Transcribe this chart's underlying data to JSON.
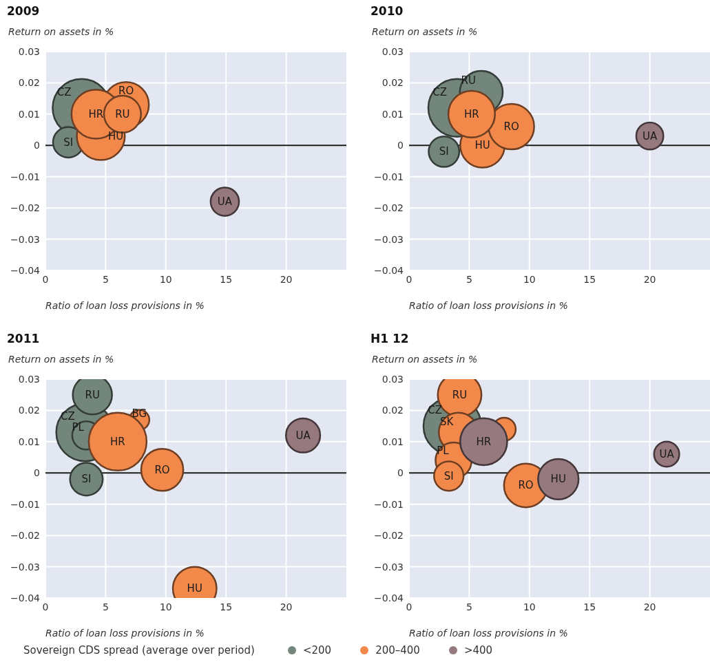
{
  "chart_data": [
    {
      "type": "bubble",
      "title": "2009",
      "xlabel": "Ratio of loan loss provisions in %",
      "ylabel": "Return on assets in %",
      "xlim": [
        0,
        25
      ],
      "xticks": [
        0,
        5,
        10,
        15,
        20
      ],
      "ylim": [
        -0.04,
        0.03
      ],
      "yticks": [
        {
          "value": -0.04,
          "label": "−0.04"
        },
        {
          "value": -0.03,
          "label": "−0.03"
        },
        {
          "value": -0.02,
          "label": "−0.02"
        },
        {
          "value": -0.01,
          "label": "−0.01"
        },
        0,
        0.01,
        0.02,
        0.03
      ],
      "grid": true,
      "ref_lines": [
        {
          "axis": "y",
          "value": 0,
          "color": "#1a1a1a"
        }
      ],
      "series": [
        {
          "color": "#73867c",
          "x": [
            3.0,
            1.9
          ],
          "values": [
            0.012,
            0.001
          ],
          "sizes": [
            1,
            0.28
          ]
        },
        {
          "color": "#f2894b",
          "x": [
            6.7,
            4.6,
            4.2,
            6.4
          ],
          "values": [
            0.013,
            0.003,
            0.01,
            0.01
          ],
          "sizes": [
            0.62,
            0.69,
            0.72,
            0.41
          ]
        },
        {
          "color": "#95797e",
          "x": [
            14.9
          ],
          "values": [
            -0.018
          ],
          "sizes": [
            0.24
          ]
        }
      ],
      "annotations": [
        {
          "text": "CZ",
          "x": 3.0,
          "y": 0.012
        },
        {
          "text": "RO",
          "x": 6.7,
          "y": 0.013
        },
        {
          "text": "HR",
          "x": 4.2,
          "y": 0.01
        },
        {
          "text": "RU",
          "x": 6.4,
          "y": 0.01
        },
        {
          "text": "SI",
          "x": 1.9,
          "y": 0.001
        },
        {
          "text": "HU",
          "x": 4.6,
          "y": 0.003
        },
        {
          "text": "UA",
          "x": 14.9,
          "y": -0.018
        }
      ]
    },
    {
      "type": "bubble",
      "title": "2010",
      "xlabel": "Ratio of loan loss provisions in %",
      "ylabel": "Return on assets in %",
      "xlim": [
        0,
        25
      ],
      "xticks": [
        0,
        5,
        10,
        15,
        20
      ],
      "ylim": [
        -0.04,
        0.03
      ],
      "yticks": [
        {
          "value": -0.04,
          "label": "−0.04"
        },
        {
          "value": -0.03,
          "label": "−0.03"
        },
        {
          "value": -0.02,
          "label": "−0.02"
        },
        {
          "value": -0.01,
          "label": "−0.01"
        },
        0,
        0.01,
        0.02,
        0.03
      ],
      "grid": true,
      "ref_lines": [
        {
          "axis": "y",
          "value": 0,
          "color": "#1a1a1a"
        }
      ],
      "series": [
        {
          "color": "#73867c",
          "x": [
            4.0,
            6.0,
            2.9
          ],
          "values": [
            0.012,
            0.017,
            -0.002
          ],
          "sizes": [
            1,
            0.55,
            0.28
          ]
        },
        {
          "color": "#f2894b",
          "x": [
            6.1,
            8.5,
            5.2
          ],
          "values": [
            0.0,
            0.006,
            0.01
          ],
          "sizes": [
            0.59,
            0.62,
            0.65
          ]
        },
        {
          "color": "#95797e",
          "x": [
            20.0
          ],
          "values": [
            0.003
          ],
          "sizes": [
            0.22
          ]
        }
      ],
      "annotations": [
        {
          "text": "CZ",
          "x": 4.0,
          "y": 0.012
        },
        {
          "text": "RU",
          "x": 6.0,
          "y": 0.017
        },
        {
          "text": "HR",
          "x": 5.2,
          "y": 0.01
        },
        {
          "text": "RO",
          "x": 8.5,
          "y": 0.006
        },
        {
          "text": "SI",
          "x": 2.9,
          "y": -0.002
        },
        {
          "text": "HU",
          "x": 6.1,
          "y": 0.0
        },
        {
          "text": "UA",
          "x": 20.0,
          "y": 0.003
        }
      ]
    },
    {
      "type": "bubble",
      "title": "2011",
      "xlabel": "Ratio of loan loss provisions in %",
      "ylabel": "Return on assets in %",
      "xlim": [
        0,
        25
      ],
      "xticks": [
        0,
        5,
        10,
        15,
        20
      ],
      "ylim": [
        -0.04,
        0.03
      ],
      "yticks": [
        {
          "value": -0.04,
          "label": "−0.04"
        },
        {
          "value": -0.03,
          "label": "−0.03"
        },
        {
          "value": -0.02,
          "label": "−0.02"
        },
        {
          "value": -0.01,
          "label": "−0.01"
        },
        0,
        0.01,
        0.02,
        0.03
      ],
      "grid": true,
      "ref_lines": [
        {
          "axis": "y",
          "value": 0,
          "color": "#1a1a1a"
        }
      ],
      "series": [
        {
          "color": "#73867c",
          "x": [
            3.3,
            3.4,
            3.4,
            3.9
          ],
          "values": [
            0.013,
            0.012,
            -0.002,
            0.025
          ],
          "sizes": [
            1,
            0.24,
            0.32,
            0.46
          ]
        },
        {
          "color": "#f2894b",
          "x": [
            7.8,
            6.0,
            9.7,
            12.4
          ],
          "values": [
            0.017,
            0.01,
            0.001,
            -0.037
          ],
          "sizes": [
            0.12,
            1,
            0.53,
            0.57
          ]
        },
        {
          "color": "#95797e",
          "x": [
            21.4
          ],
          "values": [
            0.012
          ],
          "sizes": [
            0.35
          ]
        }
      ],
      "annotations": [
        {
          "text": "RU",
          "x": 3.9,
          "y": 0.025
        },
        {
          "text": "BG",
          "x": 7.8,
          "y": 0.017
        },
        {
          "text": "CZ",
          "x": 3.3,
          "y": 0.013
        },
        {
          "text": "PL",
          "x": 3.4,
          "y": 0.012
        },
        {
          "text": "HR",
          "x": 6.0,
          "y": 0.01
        },
        {
          "text": "SI",
          "x": 3.4,
          "y": -0.002
        },
        {
          "text": "RO",
          "x": 9.7,
          "y": 0.001
        },
        {
          "text": "HU",
          "x": 12.4,
          "y": -0.037
        },
        {
          "text": "UA",
          "x": 21.4,
          "y": 0.012
        }
      ]
    },
    {
      "type": "bubble",
      "title": "H1 12",
      "xlabel": "Ratio of loan loss provisions in %",
      "ylabel": "Return on assets in %",
      "xlim": [
        0,
        25
      ],
      "xticks": [
        0,
        5,
        10,
        15,
        20
      ],
      "ylim": [
        -0.04,
        0.03
      ],
      "yticks": [
        {
          "value": -0.04,
          "label": "−0.04"
        },
        {
          "value": -0.03,
          "label": "−0.03"
        },
        {
          "value": -0.02,
          "label": "−0.02"
        },
        {
          "value": -0.01,
          "label": "−0.01"
        },
        0,
        0.01,
        0.02,
        0.03
      ],
      "grid": true,
      "ref_lines": [
        {
          "axis": "y",
          "value": 0,
          "color": "#1a1a1a"
        }
      ],
      "legend": "bottom",
      "legend_title": "Sovereign CDS spread (average over period)",
      "series": [
        {
          "name": "<200",
          "color": "#73867c",
          "x": [
            3.6
          ],
          "values": [
            0.015
          ],
          "sizes": [
            1
          ]
        },
        {
          "name": "200–400",
          "color": "#f2894b",
          "x": [
            4.2,
            4.1,
            7.9,
            3.7,
            3.3,
            9.7
          ],
          "values": [
            0.025,
            0.013,
            0.014,
            0.004,
            -0.001,
            -0.004
          ],
          "sizes": [
            0.57,
            0.46,
            0.16,
            0.39,
            0.26,
            0.57
          ]
        },
        {
          "name": ">400",
          "color": "#95797e",
          "x": [
            6.2,
            12.4,
            21.4
          ],
          "values": [
            0.01,
            -0.002,
            0.006
          ],
          "sizes": [
            0.66,
            0.49,
            0.19
          ]
        }
      ],
      "annotations": [
        {
          "text": "RU",
          "x": 4.2,
          "y": 0.025
        },
        {
          "text": "CZ",
          "x": 3.6,
          "y": 0.015
        },
        {
          "text": "SK",
          "x": 4.1,
          "y": 0.013
        },
        {
          "text": "HR",
          "x": 6.2,
          "y": 0.01
        },
        {
          "text": "PL",
          "x": 3.7,
          "y": 0.004
        },
        {
          "text": "SI",
          "x": 3.3,
          "y": -0.001
        },
        {
          "text": "RO",
          "x": 9.7,
          "y": -0.004
        },
        {
          "text": "HU",
          "x": 12.4,
          "y": -0.002
        },
        {
          "text": "UA",
          "x": 21.4,
          "y": 0.006
        }
      ]
    }
  ]
}
